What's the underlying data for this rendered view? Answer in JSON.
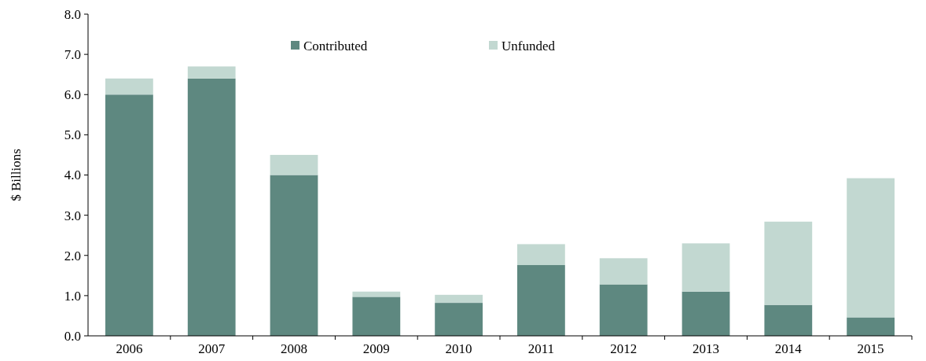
{
  "chart_data": {
    "type": "bar",
    "stacked": true,
    "ylabel": "$ Billions",
    "categories": [
      "2006",
      "2007",
      "2008",
      "2009",
      "2010",
      "2011",
      "2012",
      "2013",
      "2014",
      "2015"
    ],
    "series": [
      {
        "name": "Contributed",
        "color": "#5e8880",
        "values": [
          6.0,
          6.4,
          4.0,
          0.97,
          0.82,
          1.76,
          1.28,
          1.1,
          0.77,
          0.46
        ]
      },
      {
        "name": "Unfunded",
        "color": "#c2d8d1",
        "values": [
          0.4,
          0.3,
          0.5,
          0.13,
          0.2,
          0.52,
          0.65,
          1.2,
          2.07,
          3.46
        ]
      }
    ],
    "ylim": [
      0,
      8
    ],
    "yticks": [
      {
        "value": 0,
        "label": "0.0"
      },
      {
        "value": 1,
        "label": "1.0"
      },
      {
        "value": 2,
        "label": "2.0"
      },
      {
        "value": 3,
        "label": "3.0"
      },
      {
        "value": 4,
        "label": "4.0"
      },
      {
        "value": 5,
        "label": "5.0"
      },
      {
        "value": 6,
        "label": "6.0"
      },
      {
        "value": 7,
        "label": "7.0"
      },
      {
        "value": 8,
        "label": "8.0"
      }
    ],
    "grid": false,
    "legend": "top"
  }
}
